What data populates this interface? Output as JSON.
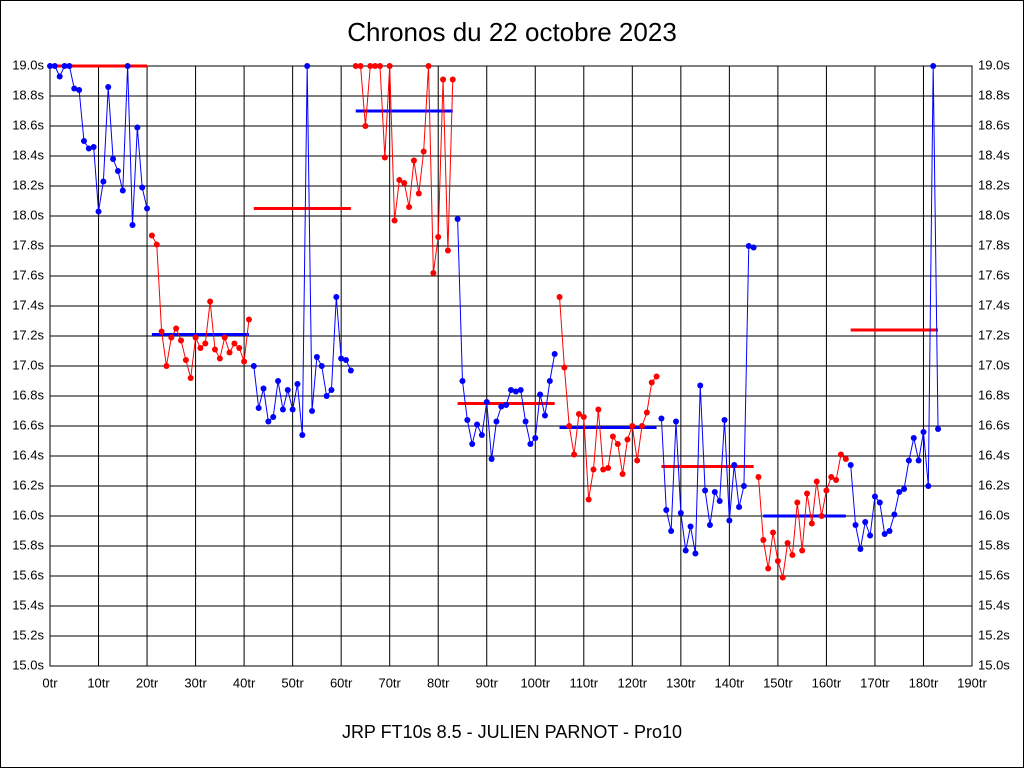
{
  "chart_data": {
    "type": "line",
    "title": "Chronos du 22 octobre 2023",
    "footer": "JRP FT10s 8.5 - JULIEN PARNOT - Pro10",
    "xlim": [
      0,
      190
    ],
    "ylim": [
      15.0,
      19.0
    ],
    "grid": true,
    "xticks": [
      {
        "value": 0,
        "label": "0tr"
      },
      {
        "value": 10,
        "label": "10tr"
      },
      {
        "value": 20,
        "label": "20tr"
      },
      {
        "value": 30,
        "label": "30tr"
      },
      {
        "value": 40,
        "label": "40tr"
      },
      {
        "value": 50,
        "label": "50tr"
      },
      {
        "value": 60,
        "label": "60tr"
      },
      {
        "value": 70,
        "label": "70tr"
      },
      {
        "value": 80,
        "label": "80tr"
      },
      {
        "value": 90,
        "label": "90tr"
      },
      {
        "value": 100,
        "label": "100tr"
      },
      {
        "value": 110,
        "label": "110tr"
      },
      {
        "value": 120,
        "label": "120tr"
      },
      {
        "value": 130,
        "label": "130tr"
      },
      {
        "value": 140,
        "label": "140tr"
      },
      {
        "value": 150,
        "label": "150tr"
      },
      {
        "value": 160,
        "label": "160tr"
      },
      {
        "value": 170,
        "label": "170tr"
      },
      {
        "value": 180,
        "label": "180tr"
      },
      {
        "value": 190,
        "label": "190tr"
      }
    ],
    "yticks": [
      {
        "value": 15.0,
        "label": "15.0s"
      },
      {
        "value": 15.2,
        "label": "15.2s"
      },
      {
        "value": 15.4,
        "label": "15.4s"
      },
      {
        "value": 15.6,
        "label": "15.6s"
      },
      {
        "value": 15.8,
        "label": "15.8s"
      },
      {
        "value": 16.0,
        "label": "16.0s"
      },
      {
        "value": 16.2,
        "label": "16.2s"
      },
      {
        "value": 16.4,
        "label": "16.4s"
      },
      {
        "value": 16.6,
        "label": "16.6s"
      },
      {
        "value": 16.8,
        "label": "16.8s"
      },
      {
        "value": 17.0,
        "label": "17.0s"
      },
      {
        "value": 17.2,
        "label": "17.2s"
      },
      {
        "value": 17.4,
        "label": "17.4s"
      },
      {
        "value": 17.6,
        "label": "17.6s"
      },
      {
        "value": 17.8,
        "label": "17.8s"
      },
      {
        "value": 18.0,
        "label": "18.0s"
      },
      {
        "value": 18.2,
        "label": "18.2s"
      },
      {
        "value": 18.4,
        "label": "18.4s"
      },
      {
        "value": 18.6,
        "label": "18.6s"
      },
      {
        "value": 18.8,
        "label": "18.8s"
      },
      {
        "value": 19.0,
        "label": "19.0s"
      }
    ],
    "series": [
      {
        "color": "#0000ff",
        "x": [
          0,
          1,
          2,
          3,
          4,
          5,
          6,
          7,
          8,
          9,
          10,
          11,
          12,
          13,
          14,
          15,
          16,
          17,
          18,
          19,
          20
        ],
        "values": [
          19.0,
          19.0,
          18.93,
          19.0,
          19.0,
          18.85,
          18.84,
          18.5,
          18.45,
          18.46,
          18.03,
          18.23,
          18.86,
          18.38,
          18.3,
          18.17,
          19.0,
          17.94,
          18.59,
          18.19,
          18.05
        ]
      },
      {
        "color": "#ff0000",
        "x": [
          21,
          22,
          23,
          24,
          25,
          26,
          27,
          28,
          29,
          30,
          31,
          32,
          33,
          34,
          35,
          36,
          37,
          38,
          39,
          40,
          41
        ],
        "values": [
          17.87,
          17.81,
          17.23,
          17.0,
          17.19,
          17.25,
          17.17,
          17.04,
          16.92,
          17.19,
          17.12,
          17.15,
          17.43,
          17.11,
          17.05,
          17.19,
          17.09,
          17.15,
          17.12,
          17.03,
          17.31
        ]
      },
      {
        "color": "#0000ff",
        "x": [
          42,
          43,
          44,
          45,
          46,
          47,
          48,
          49,
          50,
          51,
          52,
          53,
          54,
          55,
          56,
          57,
          58,
          59,
          60,
          61,
          62
        ],
        "values": [
          17.0,
          16.72,
          16.85,
          16.63,
          16.66,
          16.9,
          16.71,
          16.84,
          16.71,
          16.88,
          16.54,
          19.0,
          16.7,
          17.06,
          17.0,
          16.8,
          16.84,
          17.46,
          17.05,
          17.04,
          16.97
        ]
      },
      {
        "color": "#ff0000",
        "x": [
          63,
          64,
          65,
          66,
          67,
          68,
          69,
          70,
          71,
          72,
          73,
          74,
          75,
          76,
          77,
          78,
          79,
          80,
          81,
          82,
          83
        ],
        "values": [
          19.0,
          19.0,
          18.6,
          19.0,
          19.0,
          19.0,
          18.39,
          19.0,
          17.97,
          18.24,
          18.22,
          18.06,
          18.37,
          18.15,
          18.43,
          19.0,
          17.62,
          17.86,
          18.91,
          17.77,
          18.91
        ]
      },
      {
        "color": "#0000ff",
        "x": [
          84,
          85,
          86,
          87,
          88,
          89,
          90,
          91,
          92,
          93,
          94,
          95,
          96,
          97,
          98,
          99,
          100,
          101,
          102,
          103,
          104
        ],
        "values": [
          17.98,
          16.9,
          16.64,
          16.48,
          16.61,
          16.54,
          16.76,
          16.38,
          16.63,
          16.73,
          16.74,
          16.84,
          16.83,
          16.84,
          16.63,
          16.48,
          16.52,
          16.81,
          16.67,
          16.9,
          17.08
        ]
      },
      {
        "color": "#ff0000",
        "x": [
          105,
          106,
          107,
          108,
          109,
          110,
          111,
          112,
          113,
          114,
          115,
          116,
          117,
          118,
          119,
          120,
          121,
          122,
          123,
          124,
          125
        ],
        "values": [
          17.46,
          16.99,
          16.6,
          16.41,
          16.68,
          16.66,
          16.11,
          16.31,
          16.71,
          16.31,
          16.32,
          16.53,
          16.48,
          16.28,
          16.51,
          16.6,
          16.37,
          16.6,
          16.69,
          16.89,
          16.93
        ]
      },
      {
        "color": "#0000ff",
        "x": [
          126,
          127,
          128,
          129,
          130,
          131,
          132,
          133,
          134,
          135,
          136,
          137,
          138,
          139,
          140,
          141,
          142,
          143,
          144,
          145
        ],
        "values": [
          16.65,
          16.04,
          15.9,
          16.63,
          16.02,
          15.77,
          15.93,
          15.75,
          16.87,
          16.17,
          15.94,
          16.16,
          16.1,
          16.64,
          15.97,
          16.34,
          16.06,
          16.2,
          17.8,
          17.79
        ]
      },
      {
        "color": "#ff0000",
        "x": [
          146,
          147,
          148,
          149,
          150,
          151,
          152,
          153,
          154,
          155,
          156,
          157,
          158,
          159,
          160,
          161,
          162,
          163,
          164
        ],
        "values": [
          16.26,
          15.84,
          15.65,
          15.89,
          15.7,
          15.59,
          15.82,
          15.74,
          16.09,
          15.77,
          16.15,
          15.95,
          16.23,
          16.0,
          16.17,
          16.26,
          16.24,
          16.41,
          16.38
        ]
      },
      {
        "color": "#0000ff",
        "x": [
          165,
          166,
          167,
          168,
          169,
          170,
          171,
          172,
          173,
          174,
          175,
          176,
          177,
          178,
          179,
          180,
          181,
          182,
          183
        ],
        "values": [
          16.34,
          15.94,
          15.78,
          15.96,
          15.87,
          16.13,
          16.09,
          15.88,
          15.9,
          16.01,
          16.16,
          16.18,
          16.37,
          16.52,
          16.37,
          16.56,
          16.2,
          19.0,
          16.58
        ]
      }
    ],
    "averages": [
      {
        "color": "#ff0000",
        "x": [
          0,
          20
        ],
        "value": 19.0
      },
      {
        "color": "#0000ff",
        "x": [
          21,
          41
        ],
        "value": 17.21
      },
      {
        "color": "#ff0000",
        "x": [
          42,
          62
        ],
        "value": 18.05
      },
      {
        "color": "#0000ff",
        "x": [
          63,
          83
        ],
        "value": 18.7
      },
      {
        "color": "#ff0000",
        "x": [
          84,
          104
        ],
        "value": 16.75
      },
      {
        "color": "#0000ff",
        "x": [
          105,
          125
        ],
        "value": 16.59
      },
      {
        "color": "#ff0000",
        "x": [
          126,
          145
        ],
        "value": 16.33
      },
      {
        "color": "#0000ff",
        "x": [
          147,
          164
        ],
        "value": 16.0
      },
      {
        "color": "#ff0000",
        "x": [
          165,
          183
        ],
        "value": 17.24
      }
    ]
  }
}
